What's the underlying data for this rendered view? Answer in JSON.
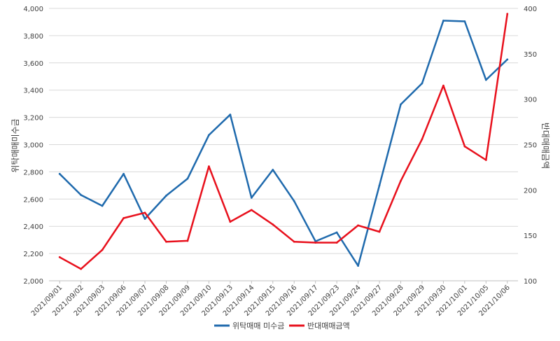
{
  "chart_data": {
    "type": "line",
    "categories": [
      "2021/09/01",
      "2021/09/02",
      "2021/09/03",
      "2021/09/06",
      "2021/09/07",
      "2021/09/08",
      "2021/09/09",
      "2021/09/10",
      "2021/09/13",
      "2021/09/14",
      "2021/09/15",
      "2021/09/16",
      "2021/09/17",
      "2021/09/23",
      "2021/09/24",
      "2021/09/27",
      "2021/09/28",
      "2021/09/29",
      "2021/09/30",
      "2021/10/01",
      "2021/10/05",
      "2021/10/06"
    ],
    "series": [
      {
        "name": "위탁매매 미수금",
        "axis": "left",
        "color": "#1f6aad",
        "values": [
          2785,
          2630,
          2550,
          2785,
          2455,
          2625,
          2750,
          3070,
          3220,
          2610,
          2815,
          2585,
          2290,
          2355,
          2110,
          2700,
          3295,
          3450,
          3910,
          3905,
          3475,
          3625
        ]
      },
      {
        "name": "반대매매금액",
        "axis": "right",
        "color": "#e8101c",
        "values": [
          126,
          113,
          134,
          169,
          175,
          143,
          144,
          226,
          165,
          178,
          162,
          143,
          142,
          142,
          161,
          154,
          210,
          256,
          315,
          248,
          233,
          394
        ]
      }
    ],
    "y_left": {
      "label": "위탁매매미수금",
      "min": 2000,
      "max": 4000,
      "ticks": [
        "2,000",
        "2,200",
        "2,400",
        "2,600",
        "2,800",
        "3,000",
        "3,200",
        "3,400",
        "3,600",
        "3,800",
        "4,000"
      ]
    },
    "y_right": {
      "label": "반대매매금액",
      "min": 100,
      "max": 400,
      "ticks": [
        "100",
        "150",
        "200",
        "250",
        "300",
        "350",
        "400"
      ]
    },
    "grid": true,
    "legend": "bottom-center"
  }
}
